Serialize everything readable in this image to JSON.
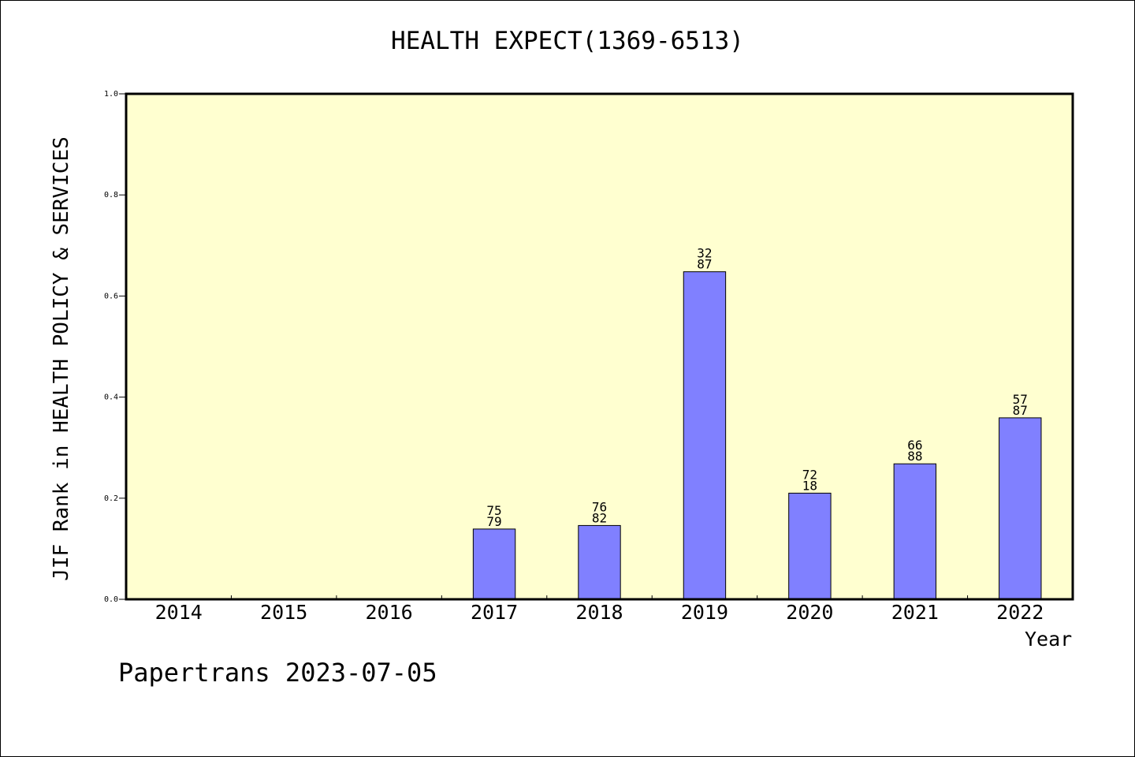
{
  "chart_data": {
    "type": "bar",
    "title": "HEALTH EXPECT(1369-6513)",
    "xlabel": "Year",
    "ylabel": "JIF Rank in HEALTH POLICY & SERVICES",
    "categories": [
      "2014",
      "2015",
      "2016",
      "2017",
      "2018",
      "2019",
      "2020",
      "2021",
      "2022"
    ],
    "values": [
      null,
      null,
      null,
      0.139,
      0.146,
      0.648,
      0.21,
      0.268,
      0.359
    ],
    "bar_labels": [
      null,
      null,
      null,
      [
        "75",
        "79"
      ],
      [
        "76",
        "82"
      ],
      [
        "32",
        "87"
      ],
      [
        "72",
        "18"
      ],
      [
        "66",
        "88"
      ],
      [
        "57",
        "87"
      ]
    ],
    "ylim": [
      0,
      1.0
    ],
    "yticks": [
      "0.0",
      "0.2",
      "0.4",
      "0.6",
      "0.8",
      "1.0"
    ],
    "grid": false,
    "colors": {
      "plot_background": "#ffffd0",
      "bar_fill": "#8080ff",
      "bar_stroke": "#000000"
    }
  },
  "footer": {
    "credit": "Papertrans 2023-07-05"
  }
}
